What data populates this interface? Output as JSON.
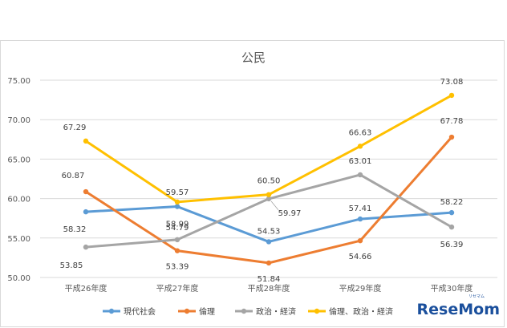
{
  "chart_data": {
    "type": "line",
    "title": "公民",
    "categories": [
      "平成26年度",
      "平成27年度",
      "平成28年度",
      "平成29年度",
      "平成30年度"
    ],
    "ylim": [
      50,
      75
    ],
    "yticks": [
      "50.00",
      "55.00",
      "60.00",
      "65.00",
      "70.00",
      "75.00"
    ],
    "grid": true,
    "legend_position": "bottom",
    "series": [
      {
        "name": "現代社会",
        "color": "#5b9bd5",
        "values": [
          58.32,
          58.99,
          54.53,
          57.41,
          58.22
        ],
        "labels": [
          "58.32",
          "58.99",
          "54.53",
          "57.41",
          "58.22"
        ]
      },
      {
        "name": "倫理",
        "color": "#ed7d31",
        "values": [
          60.87,
          53.39,
          51.84,
          54.66,
          67.78
        ],
        "labels": [
          "60.87",
          "53.39",
          "51.84",
          "54.66",
          "67.78"
        ]
      },
      {
        "name": "政治・経済",
        "color": "#a5a5a5",
        "values": [
          53.85,
          54.79,
          59.97,
          63.01,
          56.39
        ],
        "labels": [
          "53.85",
          "54.79",
          "59.97",
          "63.01",
          "56.39"
        ]
      },
      {
        "name": "倫理、政治・経済",
        "color": "#ffc000",
        "values": [
          67.29,
          59.57,
          60.5,
          66.63,
          73.08
        ],
        "labels": [
          "67.29",
          "59.57",
          "60.50",
          "66.63",
          "73.08"
        ]
      }
    ]
  },
  "watermark": {
    "text": "ReseMom",
    "small": "リセマム"
  }
}
